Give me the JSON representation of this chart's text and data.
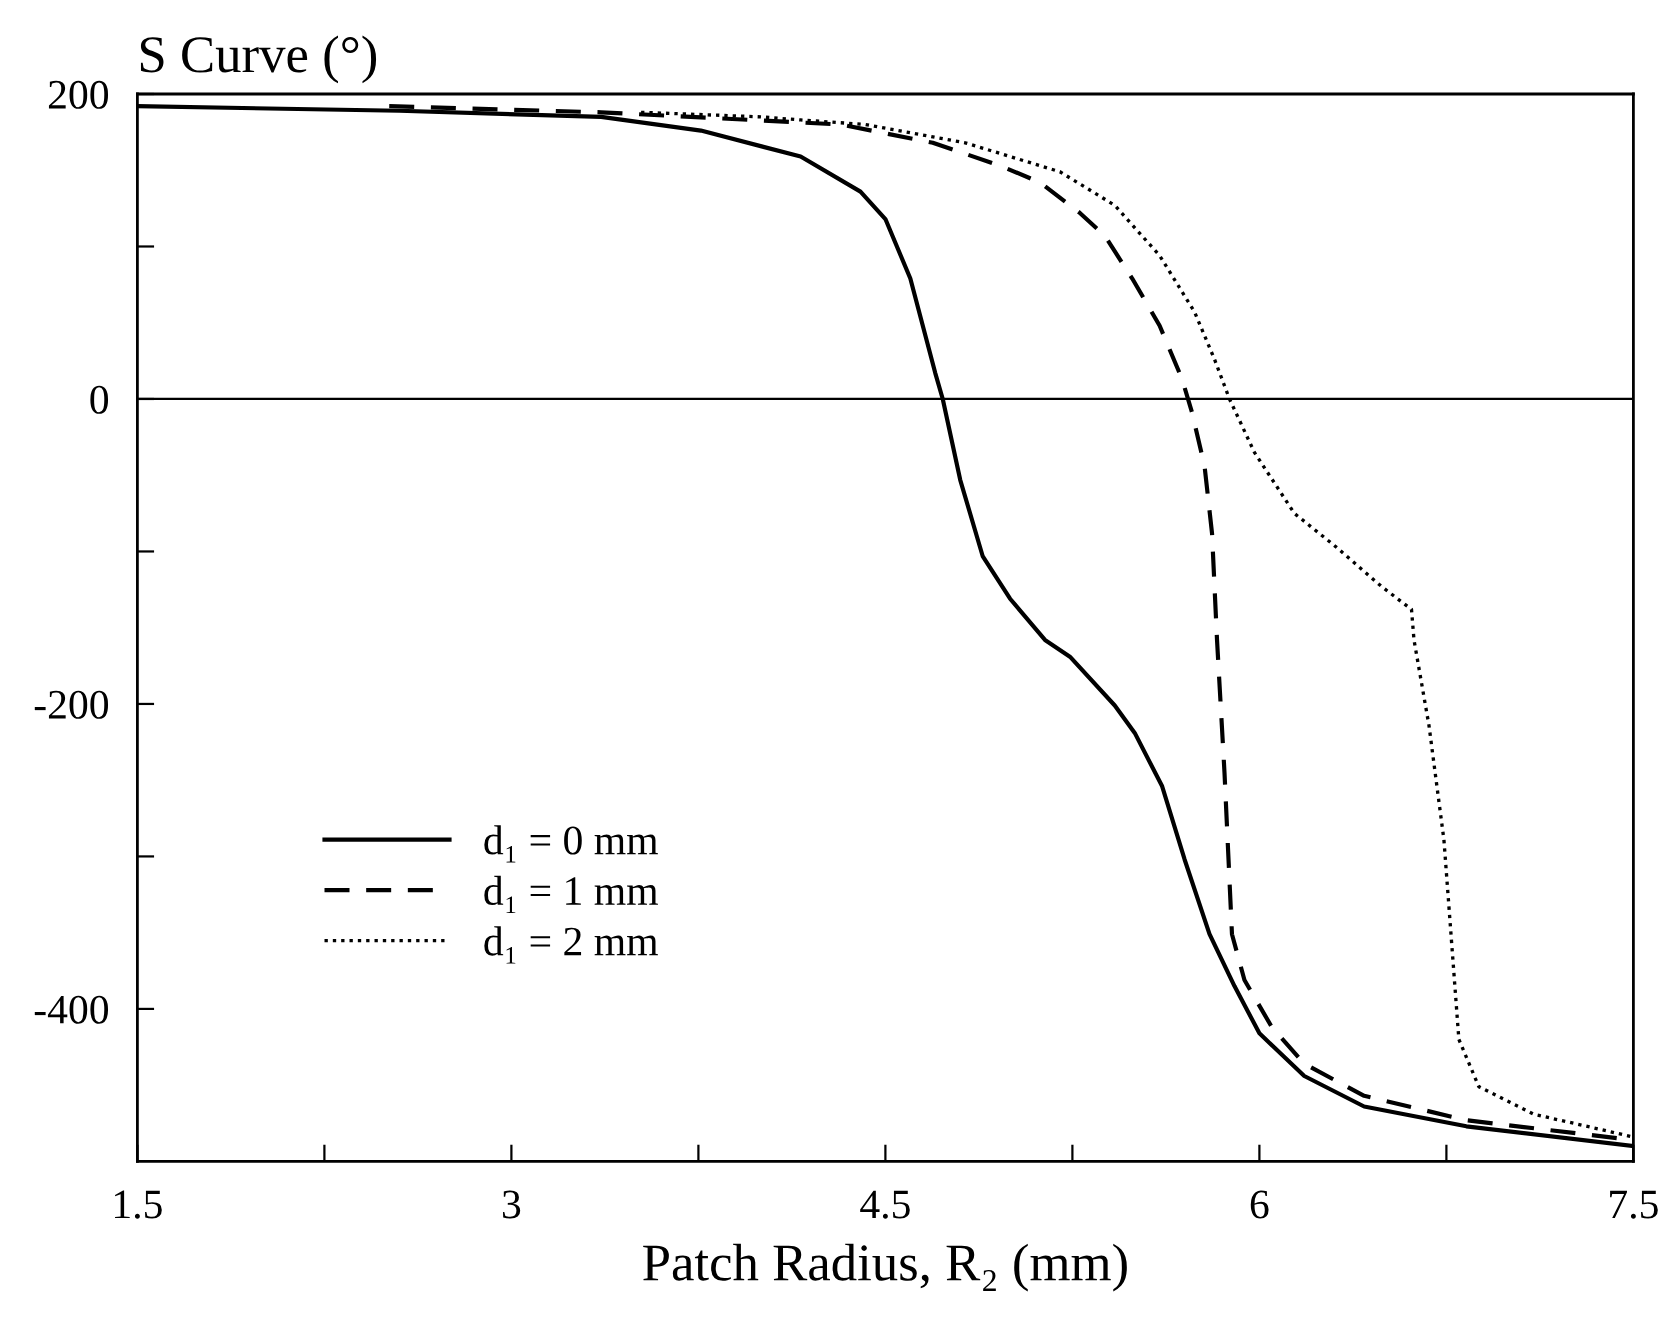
{
  "chart_data": {
    "type": "line",
    "ylabel": "S Curve (°)",
    "xlabel": "Patch Radius, R₂ (mm)",
    "xlim": [
      1.5,
      7.5
    ],
    "ylim": [
      -500,
      200
    ],
    "xticks": [
      1.5,
      {
        "value": 2.25,
        "label": null
      },
      3,
      {
        "value": 3.75,
        "label": null
      },
      4.5,
      {
        "value": 5.25,
        "label": null
      },
      6,
      {
        "value": 6.75,
        "label": null
      },
      7.5
    ],
    "yticks": [
      -400,
      {
        "value": -300,
        "label": null
      },
      -200,
      {
        "value": -100,
        "label": null
      },
      0,
      {
        "value": 100,
        "label": null
      },
      200
    ],
    "grid": false,
    "legend": "center left",
    "marker": "none",
    "ref_lines": [
      {
        "axis": "y",
        "value": 0,
        "color": "#000000"
      }
    ],
    "series": [
      {
        "name": "d₁ = 0 mm",
        "color": "#000000",
        "line_style": "solid",
        "x": [
          1.5,
          2.55,
          3.36,
          3.76,
          4.16,
          4.4,
          4.5,
          4.6,
          4.7,
          4.73,
          4.8,
          4.89,
          5.0,
          5.14,
          5.24,
          5.42,
          5.5,
          5.61,
          5.7,
          5.8,
          5.9,
          6.0,
          6.18,
          6.42,
          6.83,
          7.5
        ],
        "values": [
          192,
          189,
          185,
          176,
          159,
          136,
          118,
          79,
          17,
          0,
          -53,
          -103,
          -131,
          -158,
          -169,
          -201,
          -219,
          -254,
          -302,
          -351,
          -385,
          -416,
          -444,
          -464,
          -477,
          -490
        ]
      },
      {
        "name": "d₁ = 1 mm",
        "color": "#000000",
        "line_style": "dashed",
        "x": [
          2.51,
          3.36,
          4.32,
          4.69,
          4.96,
          5.12,
          5.28,
          5.38,
          5.49,
          5.6,
          5.69,
          5.73,
          5.78,
          5.81,
          5.83,
          5.86,
          5.89,
          5.94,
          6.05,
          6.18,
          6.42,
          6.83,
          7.5
        ],
        "values": [
          192,
          188,
          180,
          168,
          153,
          142,
          122,
          107,
          79,
          48,
          13,
          -9,
          -44,
          -88,
          -158,
          -245,
          -351,
          -381,
          -412,
          -436,
          -457,
          -473,
          -486
        ]
      },
      {
        "name": "d₁ = 2 mm",
        "color": "#000000",
        "line_style": "dotted",
        "x": [
          3.52,
          4.0,
          4.16,
          4.42,
          4.82,
          5.2,
          5.42,
          5.6,
          5.74,
          5.82,
          5.88,
          5.98,
          6.14,
          6.3,
          6.49,
          6.61,
          6.62,
          6.68,
          6.74,
          6.8,
          6.88,
          7.1,
          7.5
        ],
        "values": [
          188,
          185,
          183,
          180,
          168,
          149,
          127,
          94,
          57,
          26,
          0,
          -35,
          -75,
          -96,
          -123,
          -138,
          -158,
          -214,
          -289,
          -420,
          -451,
          -469,
          -484
        ]
      }
    ]
  }
}
